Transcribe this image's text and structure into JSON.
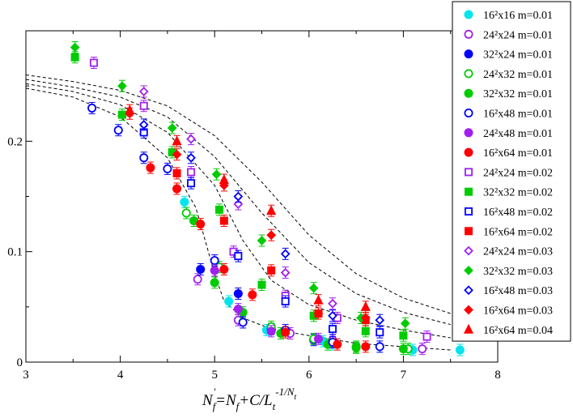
{
  "chart_data": {
    "type": "scatter",
    "title": "",
    "xlabel": "",
    "ylabel": "",
    "xlim": [
      3,
      8
    ],
    "ylim": [
      0,
      0.3
    ],
    "xticks": [
      3,
      4,
      5,
      6,
      7,
      8
    ],
    "yticks": [
      0,
      0.1,
      0.2
    ],
    "xticks_labels": [
      "3",
      "4",
      "5",
      "6",
      "7",
      "8"
    ],
    "yticks_labels": [
      "0",
      "0.1",
      "0.2"
    ],
    "legend_position": "top-right",
    "series": [
      {
        "name": "16²x16 m=0.01",
        "color": "#00e5ee",
        "marker": "circle",
        "filled": true,
        "points": [
          [
            4.68,
            0.145
          ],
          [
            5.15,
            0.055
          ],
          [
            5.55,
            0.029
          ],
          [
            6.15,
            0.019
          ],
          [
            6.25,
            0.016
          ],
          [
            7.1,
            0.011
          ],
          [
            7.6,
            0.011
          ]
        ]
      },
      {
        "name": "24²x24 m=0.01",
        "color": "#a020f0",
        "marker": "circle",
        "filled": false,
        "points": [
          [
            4.82,
            0.075
          ],
          [
            5.25,
            0.038
          ],
          [
            5.8,
            0.026
          ],
          [
            6.25,
            0.02
          ],
          [
            7.2,
            0.012
          ]
        ]
      },
      {
        "name": "32²x24 m=0.01",
        "color": "#0000ff",
        "marker": "circle",
        "filled": true,
        "points": [
          [
            4.85,
            0.084
          ],
          [
            5.25,
            0.062
          ],
          [
            5.6,
            0.03
          ],
          [
            6.05,
            0.02
          ]
        ]
      },
      {
        "name": "24²x32 m=0.01",
        "color": "#00cc00",
        "marker": "circle",
        "filled": false,
        "points": [
          [
            4.7,
            0.135
          ],
          [
            5.05,
            0.086
          ],
          [
            5.6,
            0.032
          ],
          [
            6.05,
            0.021
          ],
          [
            6.5,
            0.014
          ],
          [
            7.05,
            0.012
          ]
        ]
      },
      {
        "name": "32²x32 m=0.01",
        "color": "#00cc00",
        "marker": "circle",
        "filled": true,
        "points": [
          [
            4.78,
            0.128
          ],
          [
            5.0,
            0.072
          ],
          [
            5.3,
            0.045
          ],
          [
            5.7,
            0.026
          ],
          [
            6.2,
            0.016
          ],
          [
            6.5,
            0.013
          ],
          [
            7.0,
            0.012
          ]
        ]
      },
      {
        "name": "16²x48 m=0.01",
        "color": "#0000ff",
        "marker": "circle",
        "filled": false,
        "points": [
          [
            3.7,
            0.23
          ],
          [
            3.98,
            0.21
          ],
          [
            4.25,
            0.185
          ],
          [
            4.5,
            0.175
          ],
          [
            5.0,
            0.092
          ],
          [
            5.3,
            0.036
          ],
          [
            5.75,
            0.029
          ],
          [
            6.25,
            0.018
          ],
          [
            6.75,
            0.014
          ]
        ]
      },
      {
        "name": "24²x48 m=0.01",
        "color": "#a020f0",
        "marker": "circle",
        "filled": true,
        "points": [
          [
            5.0,
            0.083
          ],
          [
            5.25,
            0.048
          ],
          [
            5.6,
            0.028
          ],
          [
            6.1,
            0.021
          ]
        ]
      },
      {
        "name": "16²x64 m=0.01",
        "color": "#ff0000",
        "marker": "circle",
        "filled": true,
        "points": [
          [
            4.32,
            0.176
          ],
          [
            4.6,
            0.157
          ],
          [
            4.85,
            0.125
          ],
          [
            5.1,
            0.084
          ],
          [
            5.4,
            0.061
          ],
          [
            5.75,
            0.027
          ],
          [
            6.3,
            0.016
          ],
          [
            6.6,
            0.014
          ]
        ]
      },
      {
        "name": "24²x24 m=0.02",
        "color": "#a020f0",
        "marker": "square",
        "filled": false,
        "points": [
          [
            3.72,
            0.271
          ],
          [
            4.25,
            0.232
          ],
          [
            4.75,
            0.172
          ],
          [
            5.2,
            0.1
          ],
          [
            5.75,
            0.06
          ],
          [
            6.3,
            0.04
          ],
          [
            7.25,
            0.023
          ]
        ]
      },
      {
        "name": "32²x32 m=0.02",
        "color": "#00cc00",
        "marker": "square",
        "filled": true,
        "points": [
          [
            3.52,
            0.276
          ],
          [
            4.02,
            0.224
          ],
          [
            4.55,
            0.19
          ],
          [
            5.05,
            0.138
          ],
          [
            5.5,
            0.07
          ],
          [
            6.05,
            0.042
          ],
          [
            6.6,
            0.028
          ],
          [
            7.0,
            0.024
          ]
        ]
      },
      {
        "name": "16²x48 m=0.02",
        "color": "#0000ff",
        "marker": "square",
        "filled": false,
        "points": [
          [
            4.25,
            0.208
          ],
          [
            4.75,
            0.162
          ],
          [
            5.25,
            0.096
          ],
          [
            5.75,
            0.055
          ],
          [
            6.25,
            0.03
          ],
          [
            6.75,
            0.027
          ]
        ]
      },
      {
        "name": "16²x64 m=0.02",
        "color": "#ff0000",
        "marker": "square",
        "filled": true,
        "points": [
          [
            4.6,
            0.171
          ],
          [
            5.1,
            0.128
          ],
          [
            5.6,
            0.083
          ],
          [
            6.1,
            0.044
          ],
          [
            6.6,
            0.038
          ]
        ]
      },
      {
        "name": "24²x24 m=0.03",
        "color": "#a020f0",
        "marker": "diamond",
        "filled": false,
        "points": [
          [
            4.25,
            0.245
          ],
          [
            4.75,
            0.202
          ],
          [
            5.25,
            0.143
          ],
          [
            5.75,
            0.081
          ],
          [
            6.25,
            0.053
          ]
        ]
      },
      {
        "name": "32²x32 m=0.03",
        "color": "#00cc00",
        "marker": "diamond",
        "filled": true,
        "points": [
          [
            3.52,
            0.285
          ],
          [
            4.02,
            0.25
          ],
          [
            4.55,
            0.212
          ],
          [
            5.02,
            0.17
          ],
          [
            5.5,
            0.11
          ],
          [
            6.05,
            0.067
          ],
          [
            6.55,
            0.04
          ],
          [
            7.02,
            0.035
          ]
        ]
      },
      {
        "name": "16²x48 m=0.03",
        "color": "#0000ff",
        "marker": "diamond",
        "filled": false,
        "points": [
          [
            4.25,
            0.215
          ],
          [
            4.75,
            0.185
          ],
          [
            5.25,
            0.15
          ],
          [
            5.75,
            0.098
          ],
          [
            6.25,
            0.042
          ],
          [
            6.75,
            0.038
          ]
        ]
      },
      {
        "name": "16²x64 m=0.03",
        "color": "#ff0000",
        "marker": "diamond",
        "filled": true,
        "points": [
          [
            4.1,
            0.225
          ],
          [
            4.6,
            0.188
          ],
          [
            5.1,
            0.16
          ],
          [
            5.6,
            0.115
          ],
          [
            6.1,
            0.044
          ],
          [
            6.6,
            0.04
          ]
        ]
      },
      {
        "name": "16²x64 m=0.04",
        "color": "#ff0000",
        "marker": "triangle",
        "filled": true,
        "points": [
          [
            4.1,
            0.228
          ],
          [
            4.6,
            0.2
          ],
          [
            5.1,
            0.165
          ],
          [
            5.6,
            0.137
          ],
          [
            6.1,
            0.056
          ],
          [
            6.6,
            0.05
          ]
        ]
      }
    ],
    "fit_curves": [
      {
        "points": [
          [
            3,
            0.248
          ],
          [
            3.5,
            0.24
          ],
          [
            4.0,
            0.222
          ],
          [
            4.5,
            0.185
          ],
          [
            4.8,
            0.14
          ],
          [
            5.0,
            0.08
          ],
          [
            5.1,
            0.055
          ],
          [
            5.3,
            0.04
          ],
          [
            5.6,
            0.03
          ],
          [
            6.0,
            0.024
          ],
          [
            6.5,
            0.017
          ],
          [
            7.0,
            0.014
          ],
          [
            7.5,
            0.011
          ]
        ]
      },
      {
        "points": [
          [
            3,
            0.252
          ],
          [
            3.5,
            0.245
          ],
          [
            4.0,
            0.233
          ],
          [
            4.5,
            0.208
          ],
          [
            5.0,
            0.16
          ],
          [
            5.3,
            0.11
          ],
          [
            5.6,
            0.074
          ],
          [
            6.0,
            0.052
          ],
          [
            6.5,
            0.038
          ],
          [
            7.0,
            0.029
          ],
          [
            7.5,
            0.022
          ]
        ]
      },
      {
        "points": [
          [
            3,
            0.256
          ],
          [
            3.5,
            0.249
          ],
          [
            4.0,
            0.24
          ],
          [
            4.5,
            0.222
          ],
          [
            5.0,
            0.186
          ],
          [
            5.5,
            0.135
          ],
          [
            6.0,
            0.09
          ],
          [
            6.5,
            0.062
          ],
          [
            7.0,
            0.045
          ],
          [
            7.5,
            0.034
          ]
        ]
      },
      {
        "points": [
          [
            3,
            0.26
          ],
          [
            3.5,
            0.254
          ],
          [
            4.0,
            0.246
          ],
          [
            4.5,
            0.232
          ],
          [
            5.0,
            0.205
          ],
          [
            5.5,
            0.163
          ],
          [
            6.0,
            0.115
          ],
          [
            6.5,
            0.08
          ],
          [
            7.0,
            0.058
          ],
          [
            7.5,
            0.044
          ],
          [
            7.8,
            0.037
          ]
        ]
      }
    ]
  }
}
